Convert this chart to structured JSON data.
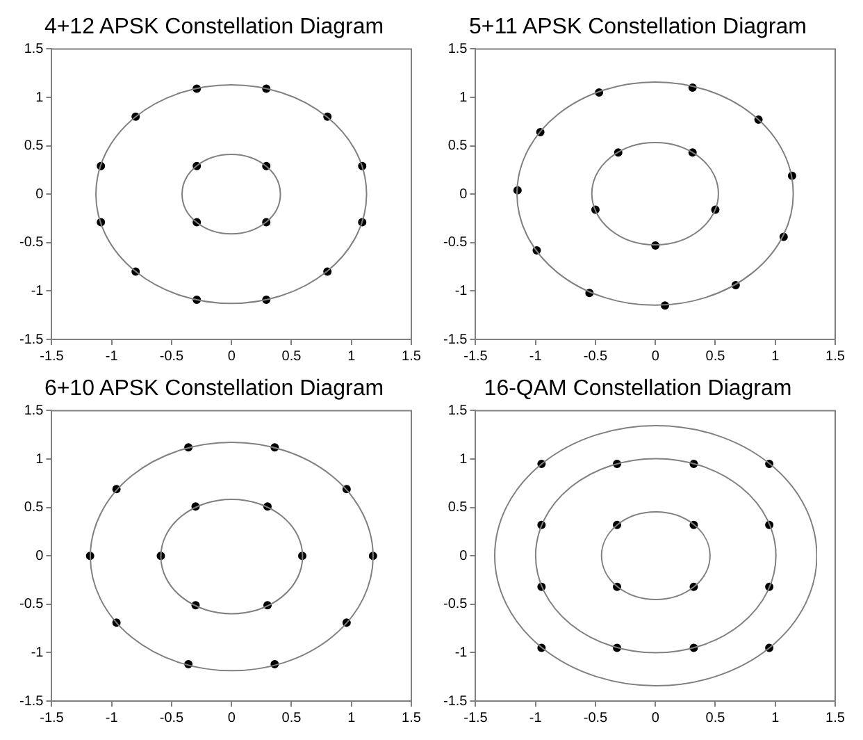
{
  "chart_data": [
    {
      "type": "scatter",
      "title": "4+12 APSK Constellation Diagram",
      "xlim": [
        -1.5,
        1.5
      ],
      "ylim": [
        -1.5,
        1.5
      ],
      "xticks": [
        -1.5,
        -1,
        -0.5,
        0,
        0.5,
        1,
        1.5
      ],
      "yticks": [
        -1.5,
        -1,
        -0.5,
        0,
        0.5,
        1,
        1.5
      ],
      "marker": "circle",
      "series": [
        {
          "color": "#000000",
          "x": [
            0.29,
            -0.29,
            -0.29,
            0.29,
            0.29,
            -0.29,
            0.8,
            -0.8,
            1.09,
            -1.09,
            1.09,
            -1.09,
            0.8,
            -0.8,
            0.29,
            -0.29
          ],
          "values": [
            0.29,
            0.29,
            -0.29,
            -0.29,
            1.09,
            1.09,
            0.8,
            0.8,
            0.29,
            0.29,
            -0.29,
            -0.29,
            -0.8,
            -0.8,
            -1.09,
            -1.09
          ]
        }
      ]
    },
    {
      "type": "scatter",
      "title": "5+11 APSK Constellation Diagram",
      "xlim": [
        -1.5,
        1.5
      ],
      "ylim": [
        -1.5,
        1.5
      ],
      "xticks": [
        -1.5,
        -1,
        -0.5,
        0,
        0.5,
        1,
        1.5
      ],
      "yticks": [
        -1.5,
        -1,
        -0.5,
        0,
        0.5,
        1,
        1.5
      ],
      "marker": "circle",
      "series": [
        {
          "color": "#000000",
          "x": [
            0,
            0.5,
            0.31,
            -0.31,
            -0.5,
            0.08,
            0.67,
            1.07,
            1.14,
            0.86,
            0.31,
            -0.47,
            -0.96,
            -1.15,
            -0.99,
            -0.55
          ],
          "values": [
            -0.53,
            -0.16,
            0.43,
            0.43,
            -0.16,
            -1.15,
            -0.94,
            -0.44,
            0.19,
            0.77,
            1.1,
            1.05,
            0.64,
            0.04,
            -0.58,
            -1.02
          ]
        }
      ]
    },
    {
      "type": "scatter",
      "title": "6+10 APSK Constellation Diagram",
      "xlim": [
        -1.5,
        1.5
      ],
      "ylim": [
        -1.5,
        1.5
      ],
      "xticks": [
        -1.5,
        -1,
        -0.5,
        0,
        0.5,
        1,
        1.5
      ],
      "yticks": [
        -1.5,
        -1,
        -0.5,
        0,
        0.5,
        1,
        1.5
      ],
      "marker": "circle",
      "series": [
        {
          "color": "#000000",
          "x": [
            0.59,
            -0.59,
            0.3,
            -0.3,
            0.3,
            -0.3,
            1.18,
            -1.18,
            0.96,
            -0.96,
            0.96,
            -0.96,
            0.36,
            -0.36,
            0.36,
            -0.36
          ],
          "values": [
            0,
            0,
            0.51,
            0.51,
            -0.51,
            -0.51,
            0,
            0,
            0.69,
            0.69,
            -0.69,
            -0.69,
            1.12,
            1.12,
            -1.12,
            -1.12
          ]
        }
      ]
    },
    {
      "type": "scatter",
      "title": "16-QAM Constellation Diagram",
      "xlim": [
        -1.5,
        1.5
      ],
      "ylim": [
        -1.5,
        1.5
      ],
      "xticks": [
        -1.5,
        -1,
        -0.5,
        0,
        0.5,
        1,
        1.5
      ],
      "yticks": [
        -1.5,
        -1,
        -0.5,
        0,
        0.5,
        1,
        1.5
      ],
      "marker": "circle",
      "series": [
        {
          "color": "#000000",
          "x": [
            -0.95,
            -0.32,
            0.32,
            0.95,
            -0.95,
            -0.32,
            0.32,
            0.95,
            -0.95,
            -0.32,
            0.32,
            0.95,
            -0.95,
            -0.32,
            0.32,
            0.95
          ],
          "values": [
            0.95,
            0.95,
            0.95,
            0.95,
            0.32,
            0.32,
            0.32,
            0.32,
            -0.32,
            -0.32,
            -0.32,
            -0.32,
            -0.95,
            -0.95,
            -0.95,
            -0.95
          ]
        }
      ]
    }
  ]
}
